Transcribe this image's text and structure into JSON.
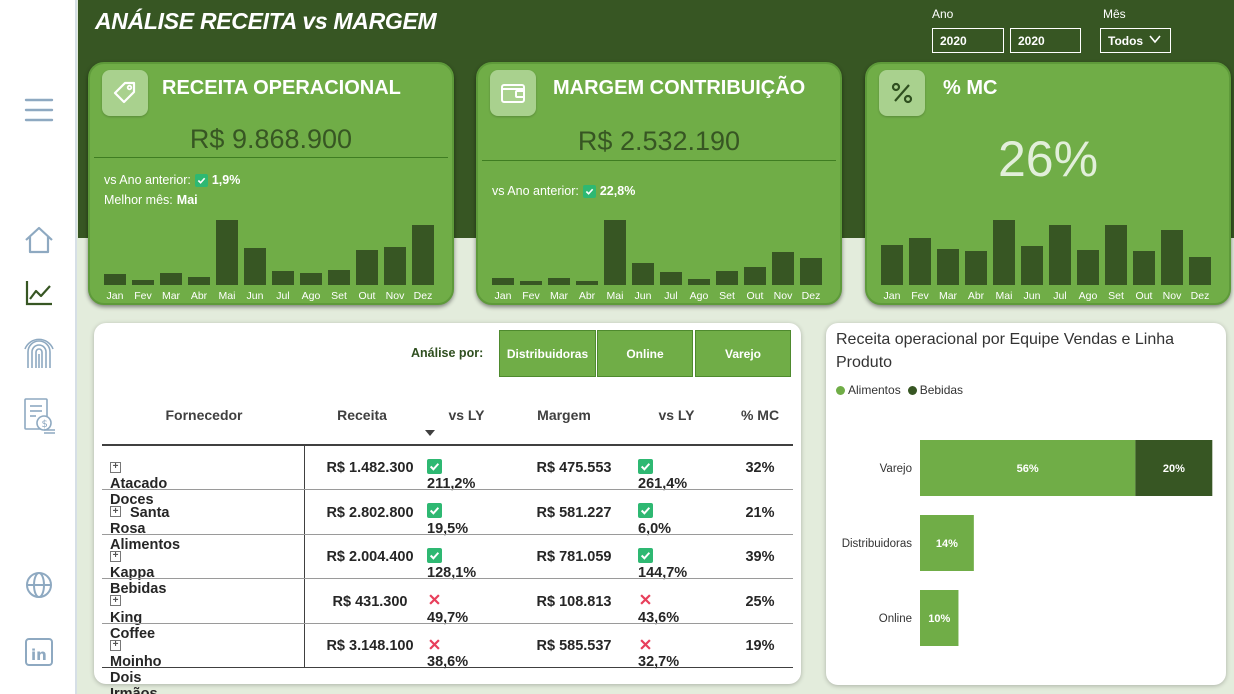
{
  "title": "ANÁLISE RECEITA vs MARGEM",
  "filters": {
    "ano_label": "Ano",
    "ano_from": "2020",
    "ano_to": "2020",
    "mes_label": "Mês",
    "mes_value": "Todos"
  },
  "sidebar": {
    "icons": [
      "menu-icon",
      "home-icon",
      "line-chart-icon",
      "fingerprint-icon",
      "money-report-icon",
      "globe-icon",
      "linkedin-icon"
    ]
  },
  "months": [
    "Jan",
    "Fev",
    "Mar",
    "Abr",
    "Mai",
    "Jun",
    "Jul",
    "Ago",
    "Set",
    "Out",
    "Nov",
    "Dez"
  ],
  "kpis": [
    {
      "title": "RECEITA OPERACIONAL",
      "value": "R$ 9.868.900",
      "vs_label": "vs Ano anterior:",
      "vs_value": "1,9%",
      "best_label": "Melhor mês:",
      "best_value": "Mai",
      "icon": "tag-icon",
      "monthly_relative": [
        0.17,
        0.08,
        0.19,
        0.13,
        1.0,
        0.57,
        0.22,
        0.18,
        0.23,
        0.54,
        0.58,
        0.92
      ]
    },
    {
      "title": "MARGEM CONTRIBUIÇÃO",
      "value": "R$ 2.532.190",
      "vs_label": "vs Ano anterior:",
      "vs_value": "22,8%",
      "icon": "wallet-icon",
      "monthly_relative": [
        0.11,
        0.06,
        0.11,
        0.06,
        1.0,
        0.34,
        0.2,
        0.09,
        0.21,
        0.28,
        0.51,
        0.41
      ]
    },
    {
      "title": "% MC",
      "value": "26%",
      "icon": "percent-icon",
      "monthly_relative": [
        0.62,
        0.73,
        0.56,
        0.53,
        1.0,
        0.6,
        0.92,
        0.54,
        0.92,
        0.53,
        0.84,
        0.43
      ]
    }
  ],
  "table": {
    "analise_label": "Análise por:",
    "segments": [
      "Distribuidoras",
      "Online",
      "Varejo"
    ],
    "headers": [
      "Fornecedor",
      "Receita",
      "vs LY",
      "Margem",
      "vs LY",
      "% MC"
    ],
    "rows": [
      {
        "fornecedor": "Atacado Doces",
        "receita": "R$ 1.482.300",
        "vs_ly_rec": "211,2%",
        "rec_up": true,
        "margem": "R$ 475.553",
        "vs_ly_mar": "261,4%",
        "mar_up": true,
        "mc": "32%"
      },
      {
        "fornecedor": "Santa Rosa Alimentos",
        "receita": "R$ 2.802.800",
        "vs_ly_rec": "19,5%",
        "rec_up": true,
        "margem": "R$ 581.227",
        "vs_ly_mar": "6,0%",
        "mar_up": true,
        "mc": "21%"
      },
      {
        "fornecedor": "Kappa Bebidas",
        "receita": "R$ 2.004.400",
        "vs_ly_rec": "128,1%",
        "rec_up": true,
        "margem": "R$ 781.059",
        "vs_ly_mar": "144,7%",
        "mar_up": true,
        "mc": "39%"
      },
      {
        "fornecedor": "King Coffee",
        "receita": "R$ 431.300",
        "vs_ly_rec": "49,7%",
        "rec_up": false,
        "margem": "R$ 108.813",
        "vs_ly_mar": "43,6%",
        "mar_up": false,
        "mc": "25%"
      },
      {
        "fornecedor": "Moinho Dois Irmãos",
        "receita": "R$ 3.148.100",
        "vs_ly_rec": "38,6%",
        "rec_up": false,
        "margem": "R$ 585.537",
        "vs_ly_mar": "32,7%",
        "mar_up": false,
        "mc": "19%"
      }
    ]
  },
  "chart_data": {
    "type": "bar",
    "orientation": "horizontal",
    "stacked": true,
    "title": "Receita operacional por Equipe Vendas e Linha Produto",
    "categories": [
      "Varejo",
      "Distribuidoras",
      "Online"
    ],
    "series": [
      {
        "name": "Alimentos",
        "values": [
          56,
          14,
          10
        ],
        "labels": [
          "56%",
          "14%",
          "10%"
        ],
        "color": "#70ad47"
      },
      {
        "name": "Bebidas",
        "values": [
          20,
          0,
          0
        ],
        "labels": [
          "20%",
          "",
          ""
        ],
        "color": "#375623"
      }
    ],
    "xlim": [
      0,
      78
    ],
    "legend_position": "top-left"
  },
  "colors": {
    "dark_green": "#375623",
    "green": "#70ad47",
    "light_green": "#a9d18e",
    "check_green": "#2eb872",
    "cross_red": "#e83f5b"
  }
}
